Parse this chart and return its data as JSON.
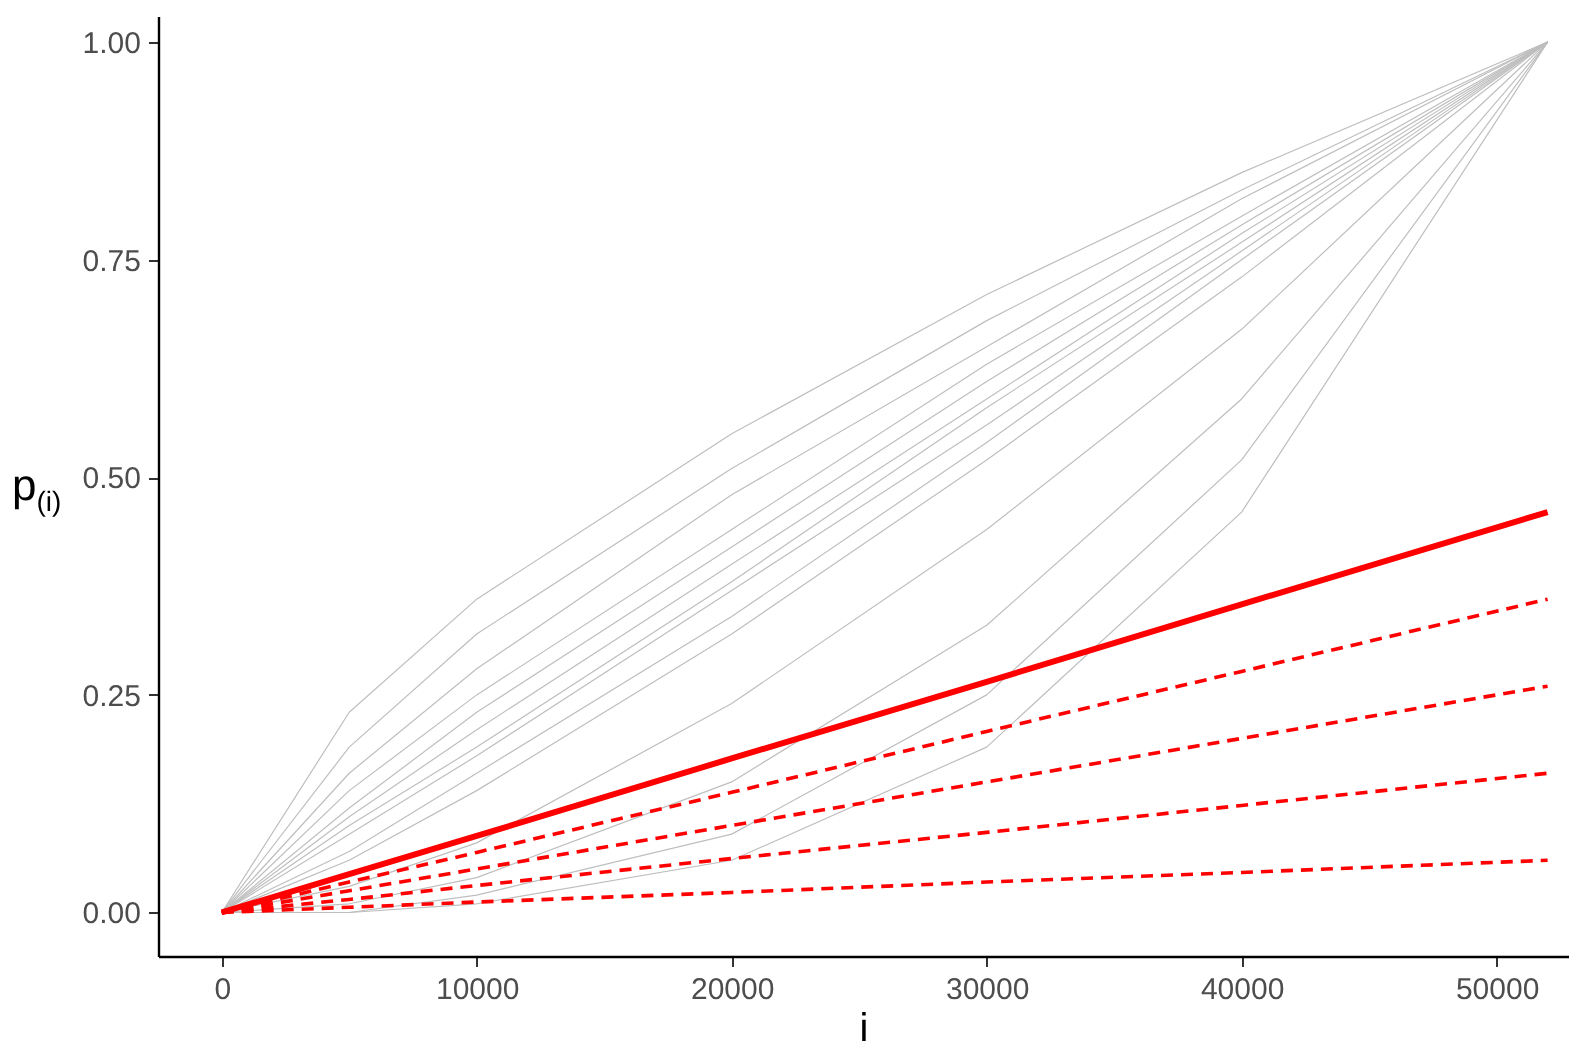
{
  "chart_data": {
    "type": "line",
    "xlabel": "i",
    "ylabel": "p$_{(i)}$",
    "xlim": [
      -2500,
      52800
    ],
    "ylim": [
      -0.05,
      1.03
    ],
    "xticks": [
      0,
      10000,
      20000,
      30000,
      40000,
      50000
    ],
    "yticks": [
      {
        "value": 0,
        "label": "0.00"
      },
      {
        "value": 0.25,
        "label": "0.25"
      },
      {
        "value": 0.5,
        "label": "0.50"
      },
      {
        "value": 0.75,
        "label": "0.75"
      },
      {
        "value": 1,
        "label": "1.00"
      }
    ],
    "grid": false,
    "x": [
      0,
      5000,
      10000,
      20000,
      30000,
      40000,
      52000
    ],
    "series": [
      {
        "color": "#bebebe",
        "values": [
          0,
          0.23,
          0.36,
          0.55,
          0.71,
          0.85,
          1
        ]
      },
      {
        "color": "#bebebe",
        "values": [
          0,
          0.19,
          0.32,
          0.51,
          0.68,
          0.83,
          1
        ]
      },
      {
        "color": "#bebebe",
        "values": [
          0,
          0.16,
          0.28,
          0.48,
          0.65,
          0.82,
          1
        ]
      },
      {
        "color": "#bebebe",
        "values": [
          0,
          0.14,
          0.25,
          0.44,
          0.63,
          0.8,
          1
        ]
      },
      {
        "color": "#bebebe",
        "values": [
          0,
          0.12,
          0.23,
          0.42,
          0.61,
          0.79,
          1
        ]
      },
      {
        "color": "#bebebe",
        "values": [
          0,
          0.11,
          0.21,
          0.4,
          0.59,
          0.78,
          1
        ]
      },
      {
        "color": "#bebebe",
        "values": [
          0,
          0.1,
          0.19,
          0.38,
          0.58,
          0.77,
          1
        ]
      },
      {
        "color": "#bebebe",
        "values": [
          0,
          0.09,
          0.18,
          0.37,
          0.56,
          0.76,
          1
        ]
      },
      {
        "color": "#bebebe",
        "values": [
          0,
          0.07,
          0.16,
          0.34,
          0.54,
          0.75,
          1
        ]
      },
      {
        "color": "#bebebe",
        "values": [
          0,
          0.06,
          0.14,
          0.32,
          0.52,
          0.73,
          1
        ]
      },
      {
        "color": "#bebebe",
        "values": [
          0,
          0.03,
          0.08,
          0.24,
          0.44,
          0.67,
          1
        ]
      },
      {
        "color": "#bebebe",
        "values": [
          0,
          0.01,
          0.04,
          0.15,
          0.33,
          0.59,
          1
        ]
      },
      {
        "color": "#bebebe",
        "values": [
          0,
          0,
          0.02,
          0.09,
          0.25,
          0.52,
          1
        ]
      },
      {
        "color": "#bebebe",
        "values": [
          0,
          0,
          0.01,
          0.06,
          0.19,
          0.46,
          1
        ]
      },
      {
        "color": "#ff0000",
        "line_style": "solid",
        "values": [
          0,
          0.044,
          0.088,
          0.177,
          0.265,
          0.354,
          0.46
        ]
      },
      {
        "color": "#ff0000",
        "line_style": "dashed",
        "values": [
          0,
          0.035,
          0.069,
          0.138,
          0.208,
          0.277,
          0.36
        ]
      },
      {
        "color": "#ff0000",
        "line_style": "dashed",
        "values": [
          0,
          0.025,
          0.05,
          0.1,
          0.15,
          0.2,
          0.26
        ]
      },
      {
        "color": "#ff0000",
        "line_style": "dashed",
        "values": [
          0,
          0.015,
          0.031,
          0.062,
          0.092,
          0.123,
          0.16
        ]
      },
      {
        "color": "#ff0000",
        "line_style": "dashed",
        "values": [
          0,
          0.006,
          0.012,
          0.023,
          0.035,
          0.046,
          0.06
        ]
      }
    ]
  }
}
